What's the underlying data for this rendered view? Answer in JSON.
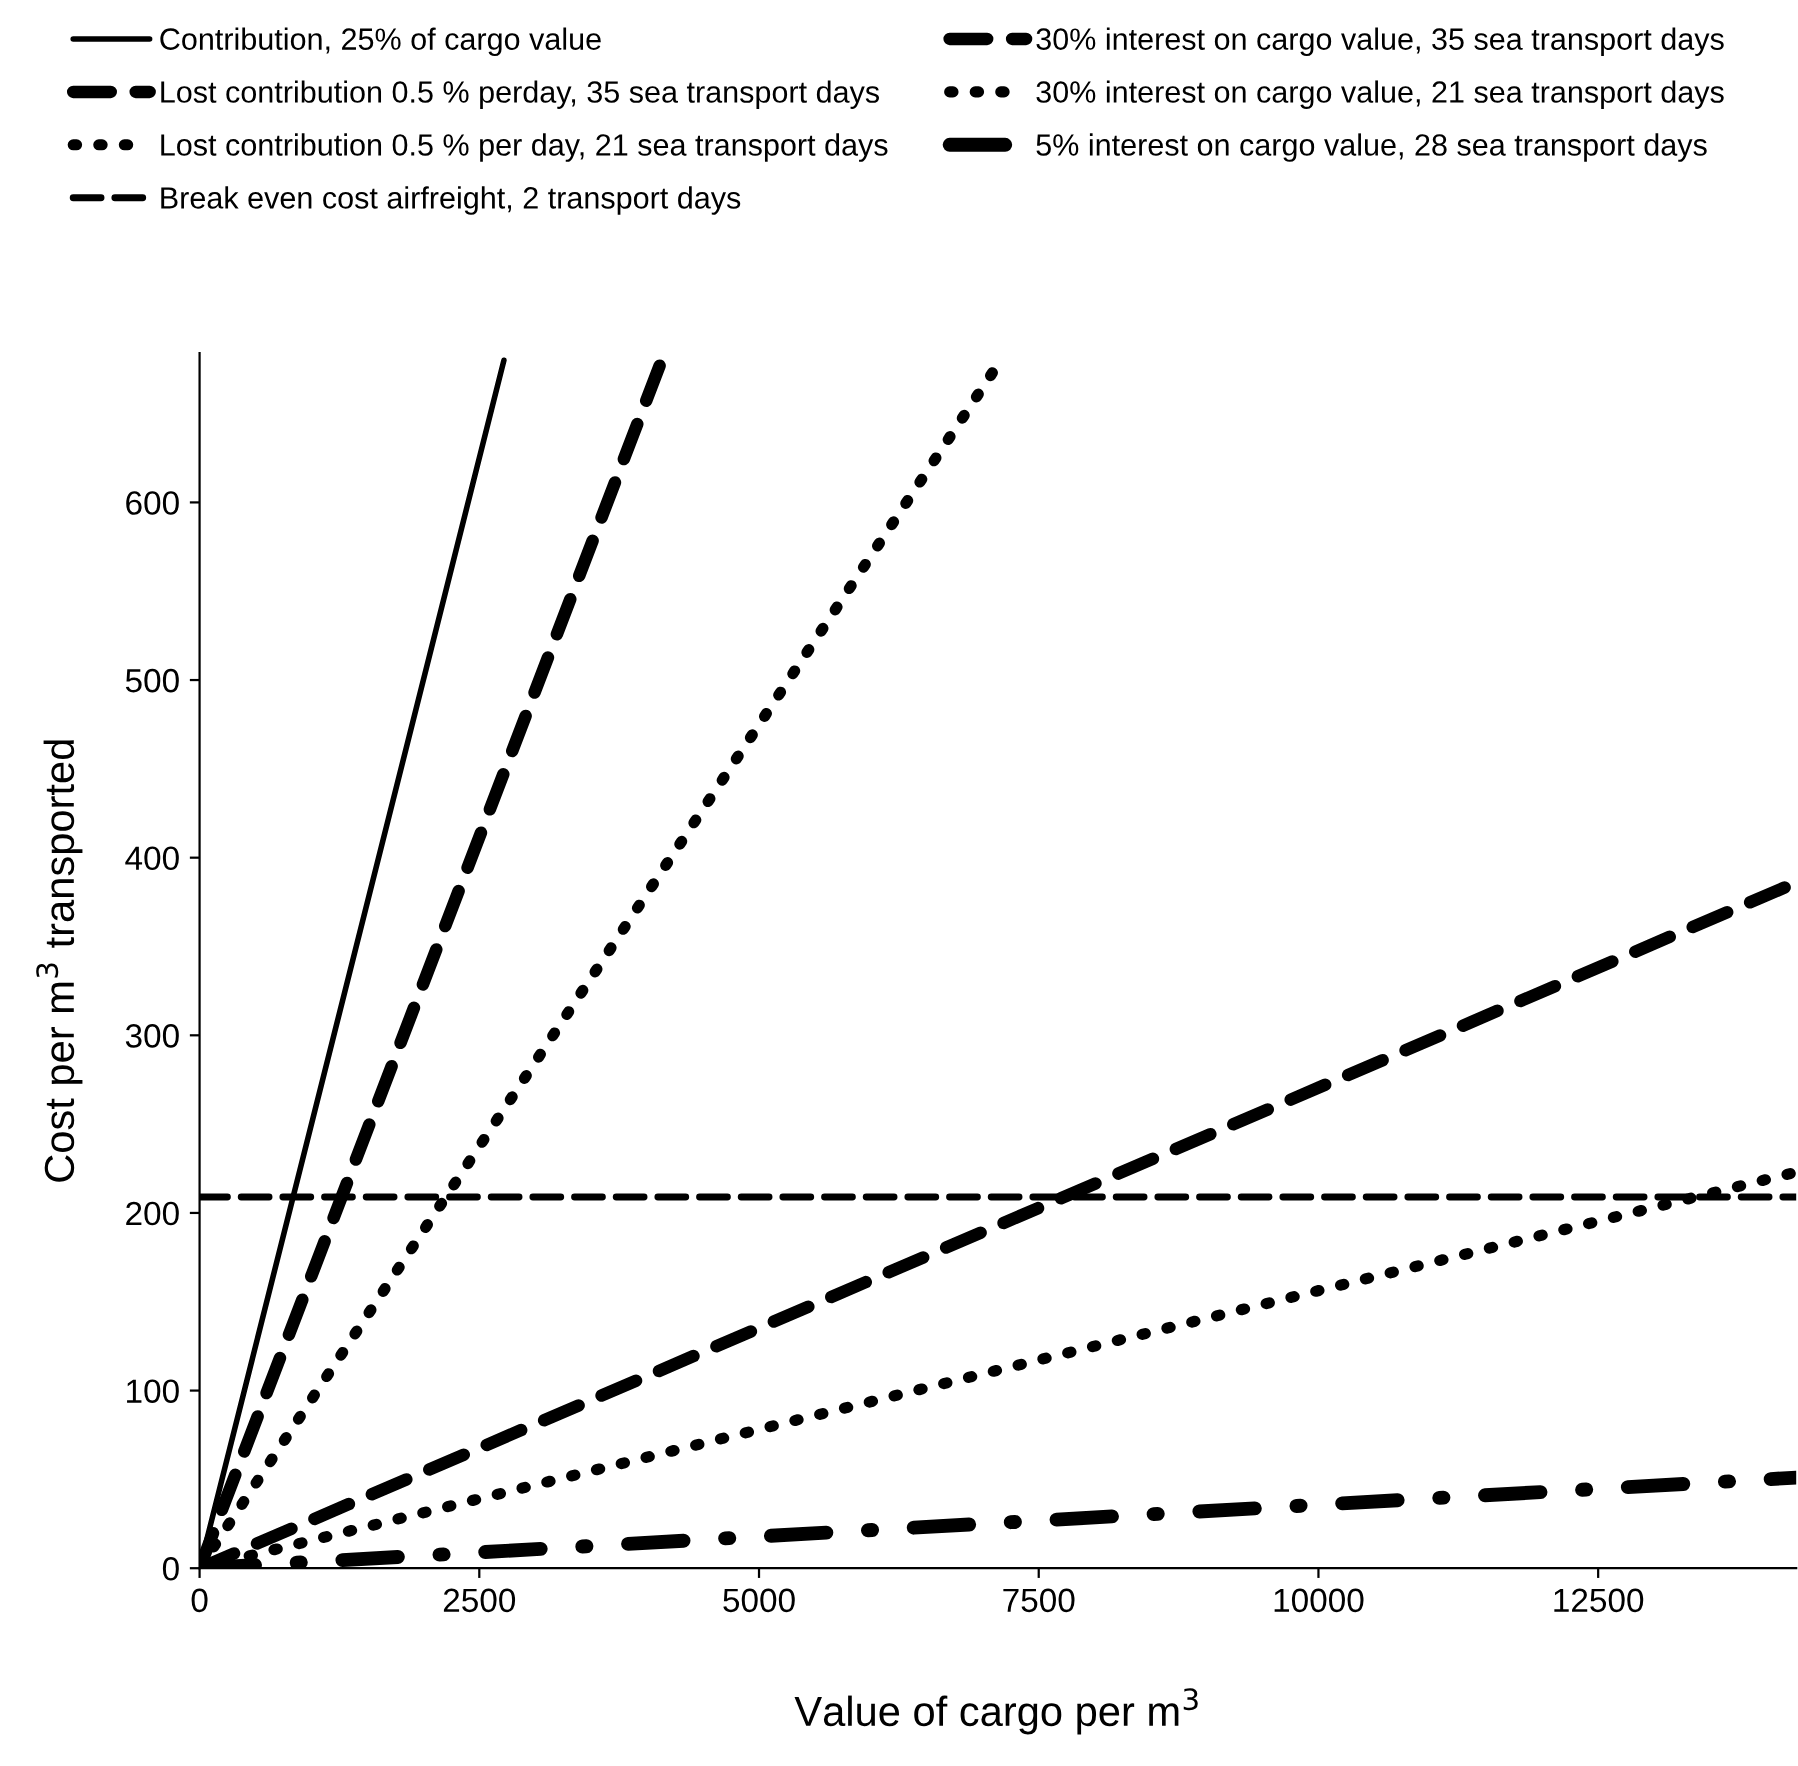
{
  "chart_data": {
    "type": "line",
    "xlabel": "Value of cargo per m$^{3}$",
    "ylabel": "Cost per m$^{3}$ transported",
    "xlim": [
      0,
      14270
    ],
    "ylim": [
      0,
      684
    ],
    "xticks": [
      0,
      2500,
      5000,
      7500,
      10000,
      12500
    ],
    "yticks": [
      0,
      100,
      200,
      300,
      400,
      500,
      600
    ],
    "grid": false,
    "legend": "top",
    "marker": "none",
    "series": [
      {
        "name": "Contribution, 25% of cargo value",
        "color": "#000000",
        "line_style": "solid",
        "x": [
          0,
          2720
        ],
        "values": [
          0,
          680
        ]
      },
      {
        "name": "Lost contribution 0.5 % perday, 35 sea transport days",
        "color": "#000000",
        "line_style": "dashed",
        "x": [
          0,
          4130
        ],
        "values": [
          0,
          680
        ]
      },
      {
        "name": "Lost contribution 0.5 % per day, 21 sea transport days",
        "color": "#000000",
        "line_style": "dotted",
        "x": [
          0,
          7160
        ],
        "values": [
          0,
          680
        ]
      },
      {
        "name": "30% interest on cargo value, 35 sea transport days",
        "color": "#000000",
        "line_style": "dashed",
        "x": [
          0,
          14270
        ],
        "values": [
          0,
          386
        ]
      },
      {
        "name": "30% interest on cargo value, 21 sea transport days",
        "color": "#000000",
        "line_style": "dotted",
        "x": [
          0,
          14270
        ],
        "values": [
          0,
          223
        ]
      },
      {
        "name": "5% interest on cargo value, 28 sea transport days",
        "color": "#000000",
        "line_style": "dashdot",
        "x": [
          0,
          14270
        ],
        "values": [
          0,
          51
        ]
      }
    ],
    "ref_lines": [
      {
        "axis": "y",
        "value": 209,
        "label": "Break even cost airfreight, 2 transport days",
        "color": "#000000",
        "line_style": "dashed"
      }
    ]
  }
}
